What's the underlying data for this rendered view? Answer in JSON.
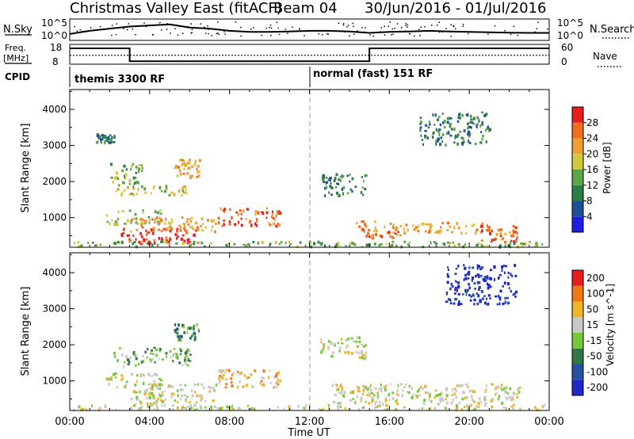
{
  "header": {
    "radar": "Christmas Valley East (fitACF)",
    "beam": "Beam 04",
    "dates": "30/Jun/2016 - 01/Jul/2016"
  },
  "panels": {
    "nsky_label": "N.Sky",
    "nsearch_label": "N.Search",
    "log_top": "10^5",
    "log_bottom": "10^0",
    "freq_label_line1": "Freq.",
    "freq_label_line2": "[MHz]",
    "freq_top": "18",
    "freq_bottom": "8",
    "nave_label": "Nave",
    "nave_top": "60",
    "nave_bottom": "0",
    "cpid_label": "CPID",
    "cpid_modes": [
      {
        "label": "themis 3300 RF",
        "start_hour": 0
      },
      {
        "label": "normal (fast) 151 RF",
        "start_hour": 12
      }
    ]
  },
  "chart_data": [
    {
      "type": "heatmap",
      "name": "power",
      "ylabel": "Slant Range [km]",
      "xlabel": "",
      "xlim": [
        0,
        24
      ],
      "ylim": [
        180,
        4550
      ],
      "yticks": [
        1000,
        2000,
        3000,
        4000
      ],
      "colorbar": {
        "label": "Power [dB]",
        "ticks": [
          "4",
          "8",
          "12",
          "16",
          "20",
          "24",
          "28"
        ],
        "colors": [
          "#1e1ee6",
          "#1e5096",
          "#2d7d46",
          "#5aa546",
          "#d2c83c",
          "#f0a032",
          "#f06e1e",
          "#e61e1e"
        ]
      },
      "echo_regions": [
        {
          "t": [
            1.3,
            2.2
          ],
          "r": [
            3050,
            3300
          ],
          "level": 2
        },
        {
          "t": [
            2.0,
            3.6
          ],
          "r": [
            1900,
            2500
          ],
          "level": 3
        },
        {
          "t": [
            2.3,
            6.0
          ],
          "r": [
            1600,
            1900
          ],
          "level": 4
        },
        {
          "t": [
            5.2,
            6.5
          ],
          "r": [
            2100,
            2600
          ],
          "level": 5
        },
        {
          "t": [
            1.8,
            4.6
          ],
          "r": [
            800,
            1200
          ],
          "level": 3
        },
        {
          "t": [
            3.0,
            7.3
          ],
          "r": [
            600,
            1000
          ],
          "level": 5
        },
        {
          "t": [
            2.5,
            6.4
          ],
          "r": [
            250,
            700
          ],
          "level": 7
        },
        {
          "t": [
            7.4,
            10.5
          ],
          "r": [
            750,
            1250
          ],
          "level": 6
        },
        {
          "t": [
            0.0,
            24.0
          ],
          "r": [
            180,
            320
          ],
          "level": 3
        },
        {
          "t": [
            14.2,
            16.5
          ],
          "r": [
            400,
            900
          ],
          "level": 6
        },
        {
          "t": [
            16.5,
            21.0
          ],
          "r": [
            550,
            850
          ],
          "level": 5
        },
        {
          "t": [
            20.5,
            22.4
          ],
          "r": [
            300,
            800
          ],
          "level": 6
        },
        {
          "t": [
            12.5,
            14.8
          ],
          "r": [
            1600,
            2200
          ],
          "level": 2
        },
        {
          "t": [
            17.5,
            21.0
          ],
          "r": [
            3000,
            3900
          ],
          "level": 2
        }
      ]
    },
    {
      "type": "heatmap",
      "name": "velocity",
      "ylabel": "Slant Range [km]",
      "xlabel": "Time UT",
      "xlim": [
        0,
        24
      ],
      "ylim": [
        180,
        4550
      ],
      "yticks": [
        1000,
        2000,
        3000,
        4000
      ],
      "xticks": [
        "00:00",
        "04:00",
        "08:00",
        "12:00",
        "16:00",
        "20:00",
        "00:00"
      ],
      "colorbar": {
        "label": "Velocity [m s^-1]",
        "ticks": [
          "200",
          "100",
          "50",
          "15",
          "-15",
          "-50",
          "-100",
          "-200"
        ],
        "colors": [
          "#1e28c8",
          "#2850a0",
          "#327846",
          "#78c83c",
          "#c8c8c8",
          "#f0b428",
          "#f07814",
          "#e61e1e"
        ]
      },
      "echo_regions": [
        {
          "t": [
            2.0,
            6.0
          ],
          "r": [
            1400,
            1900
          ],
          "level": 3
        },
        {
          "t": [
            5.2,
            6.5
          ],
          "r": [
            2100,
            2600
          ],
          "level": 2
        },
        {
          "t": [
            1.8,
            4.6
          ],
          "r": [
            800,
            1200
          ],
          "level": 4
        },
        {
          "t": [
            3.0,
            7.3
          ],
          "r": [
            300,
            900
          ],
          "level": 4
        },
        {
          "t": [
            7.4,
            10.5
          ],
          "r": [
            800,
            1300
          ],
          "level": 5
        },
        {
          "t": [
            0.0,
            24.0
          ],
          "r": [
            180,
            320
          ],
          "level": 4
        },
        {
          "t": [
            13.0,
            22.5
          ],
          "r": [
            350,
            900
          ],
          "level": 4
        },
        {
          "t": [
            18.8,
            22.3
          ],
          "r": [
            3100,
            4200
          ],
          "level": 0
        },
        {
          "t": [
            12.5,
            14.8
          ],
          "r": [
            1600,
            2200
          ],
          "level": 4
        }
      ]
    }
  ],
  "nsky_trace": [
    [
      0.0,
      0.3
    ],
    [
      1.0,
      0.45
    ],
    [
      2.0,
      0.55
    ],
    [
      3.0,
      0.65
    ],
    [
      4.0,
      0.7
    ],
    [
      5.0,
      0.75
    ],
    [
      6.0,
      0.6
    ],
    [
      7.0,
      0.55
    ],
    [
      8.0,
      0.45
    ],
    [
      9.0,
      0.4
    ],
    [
      10.0,
      0.4
    ],
    [
      11.0,
      0.42
    ],
    [
      12.0,
      0.45
    ],
    [
      13.0,
      0.45
    ],
    [
      14.0,
      0.42
    ],
    [
      15.0,
      0.35
    ],
    [
      16.0,
      0.4
    ],
    [
      17.0,
      0.42
    ],
    [
      18.0,
      0.45
    ],
    [
      19.0,
      0.42
    ],
    [
      20.0,
      0.4
    ],
    [
      21.0,
      0.38
    ],
    [
      22.0,
      0.36
    ],
    [
      23.0,
      0.35
    ],
    [
      24.0,
      0.35
    ]
  ],
  "freq_trace": [
    [
      0.0,
      16.0
    ],
    [
      3.0,
      16.0
    ],
    [
      3.0,
      9.5
    ],
    [
      15.0,
      9.5
    ],
    [
      15.0,
      16.0
    ],
    [
      24.0,
      16.0
    ]
  ],
  "nave_trace": [
    [
      0.0,
      0.45
    ],
    [
      24.0,
      0.45
    ]
  ]
}
